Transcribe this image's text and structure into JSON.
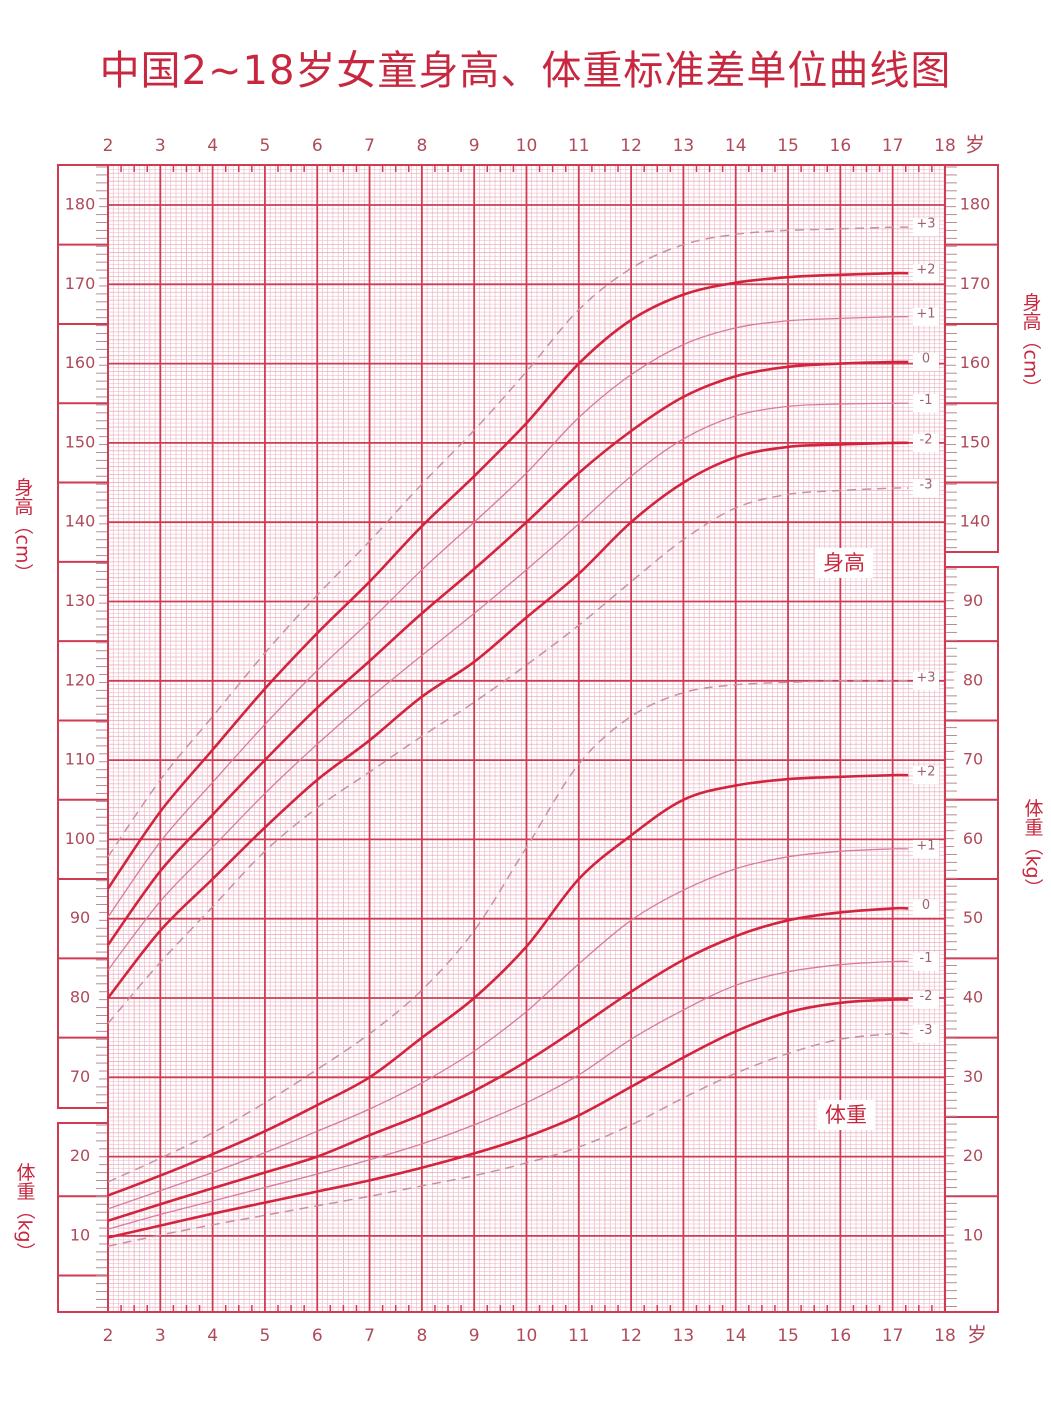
{
  "title": "中国2~18岁女童身高、体重标准差单位曲线图",
  "chart_data": {
    "type": "line",
    "title": "中国2~18岁女童身高、体重标准差单位曲线图",
    "xlabel": "岁",
    "x_ticks": [
      2,
      3,
      4,
      5,
      6,
      7,
      8,
      9,
      10,
      11,
      12,
      13,
      14,
      15,
      16,
      17,
      18
    ],
    "xlim": [
      2,
      18
    ],
    "grid": true,
    "height_axis": {
      "label": "身高（cm）",
      "unit": "cm",
      "ticks_left": [
        180,
        170,
        160,
        150,
        140,
        130,
        120,
        110,
        100,
        90,
        80,
        70
      ],
      "ticks_right": [
        180,
        170,
        160,
        150,
        140
      ]
    },
    "weight_axis": {
      "label": "体重（kg）",
      "unit": "kg",
      "ticks_left": [
        20,
        10
      ],
      "ticks_right": [
        90,
        80,
        70,
        60,
        50,
        40,
        30,
        20,
        10
      ]
    },
    "section_labels": {
      "height": "身高",
      "weight": "体重"
    },
    "ages": [
      2,
      3,
      4,
      5,
      6,
      7,
      8,
      9,
      10,
      11,
      12,
      13,
      14,
      15,
      16,
      17,
      17.3
    ],
    "height_series": [
      {
        "name": "+3",
        "style": "dashed",
        "values": [
          97.8,
          107.5,
          115.5,
          123.5,
          130.8,
          137.6,
          144.8,
          151.6,
          159.0,
          166.8,
          172.0,
          175.0,
          176.3,
          176.8,
          177.0,
          177.2,
          177.2
        ]
      },
      {
        "name": "+2",
        "style": "bold",
        "values": [
          93.8,
          103.5,
          111.3,
          119.0,
          126.0,
          132.5,
          139.5,
          145.8,
          152.5,
          160.0,
          165.5,
          168.7,
          170.2,
          170.9,
          171.2,
          171.4,
          171.4
        ]
      },
      {
        "name": "+1",
        "style": "thin",
        "values": [
          90.2,
          99.7,
          107.2,
          114.5,
          121.3,
          127.5,
          134.0,
          140.0,
          146.2,
          153.2,
          158.6,
          162.4,
          164.5,
          165.4,
          165.7,
          165.9,
          165.9
        ]
      },
      {
        "name": "0",
        "style": "bold",
        "values": [
          86.7,
          96.0,
          103.1,
          110.0,
          116.6,
          122.5,
          128.5,
          134.1,
          140.0,
          146.2,
          151.5,
          155.8,
          158.4,
          159.6,
          160.0,
          160.2,
          160.2
        ]
      },
      {
        "name": "-1",
        "style": "thin",
        "values": [
          83.5,
          92.2,
          99.0,
          105.8,
          112.0,
          117.8,
          123.2,
          128.5,
          134.0,
          139.8,
          145.8,
          150.5,
          153.4,
          154.6,
          154.9,
          155.0,
          155.0
        ]
      },
      {
        "name": "-2",
        "style": "bold",
        "values": [
          80.0,
          88.5,
          95.0,
          101.5,
          107.5,
          112.5,
          118.0,
          122.4,
          128.0,
          133.5,
          140.0,
          145.0,
          148.2,
          149.5,
          149.8,
          150.0,
          150.0
        ]
      },
      {
        "name": "-3",
        "style": "dashed",
        "values": [
          76.8,
          84.5,
          91.5,
          98.5,
          104.0,
          108.5,
          113.0,
          117.3,
          122.0,
          127.0,
          132.5,
          137.8,
          141.8,
          143.5,
          144.0,
          144.3,
          144.3
        ]
      }
    ],
    "weight_series": [
      {
        "name": "+3",
        "style": "dashed",
        "values": [
          16.8,
          19.8,
          23.0,
          26.8,
          31.0,
          35.5,
          41.0,
          48.5,
          59.0,
          69.5,
          75.5,
          78.5,
          79.5,
          79.8,
          80.0,
          80.0,
          80.0
        ]
      },
      {
        "name": "+2",
        "style": "bold",
        "values": [
          15.1,
          17.6,
          20.3,
          23.2,
          26.5,
          30.0,
          35.0,
          40.0,
          46.5,
          55.0,
          60.5,
          65.0,
          66.8,
          67.6,
          67.9,
          68.1,
          68.1
        ]
      },
      {
        "name": "+1",
        "style": "thin",
        "values": [
          13.4,
          15.7,
          18.0,
          20.5,
          23.2,
          26.0,
          29.3,
          33.3,
          38.3,
          44.3,
          49.8,
          53.6,
          56.3,
          57.8,
          58.5,
          58.8,
          58.8
        ]
      },
      {
        "name": "0",
        "style": "bold",
        "values": [
          11.9,
          14.0,
          16.0,
          18.0,
          20.0,
          22.7,
          25.3,
          28.3,
          32.0,
          36.3,
          40.8,
          44.8,
          47.8,
          49.8,
          50.8,
          51.3,
          51.3
        ]
      },
      {
        "name": "-1",
        "style": "thin",
        "values": [
          10.85,
          12.7,
          14.4,
          16.1,
          17.8,
          19.6,
          21.6,
          24.0,
          26.8,
          30.3,
          34.8,
          38.5,
          41.6,
          43.3,
          44.2,
          44.6,
          44.6
        ]
      },
      {
        "name": "-2",
        "style": "bold",
        "values": [
          9.8,
          11.3,
          12.8,
          14.2,
          15.6,
          17.0,
          18.6,
          20.4,
          22.5,
          25.2,
          28.8,
          32.5,
          35.8,
          38.2,
          39.4,
          39.8,
          39.8
        ]
      },
      {
        "name": "-3",
        "style": "dashed",
        "values": [
          8.7,
          10.1,
          11.4,
          12.6,
          13.8,
          15.0,
          16.3,
          17.6,
          19.2,
          21.2,
          24.0,
          27.4,
          30.5,
          33.0,
          34.8,
          35.5,
          35.5
        ]
      }
    ],
    "colors": {
      "major": "#d23a52",
      "minor": "#eab3c1",
      "bold_curve": "#d3243f",
      "thin_curve": "#d77ba0",
      "dashed_curve": "#c890a8",
      "text": "#c8283f",
      "axis_text": "#b04a5a"
    }
  }
}
